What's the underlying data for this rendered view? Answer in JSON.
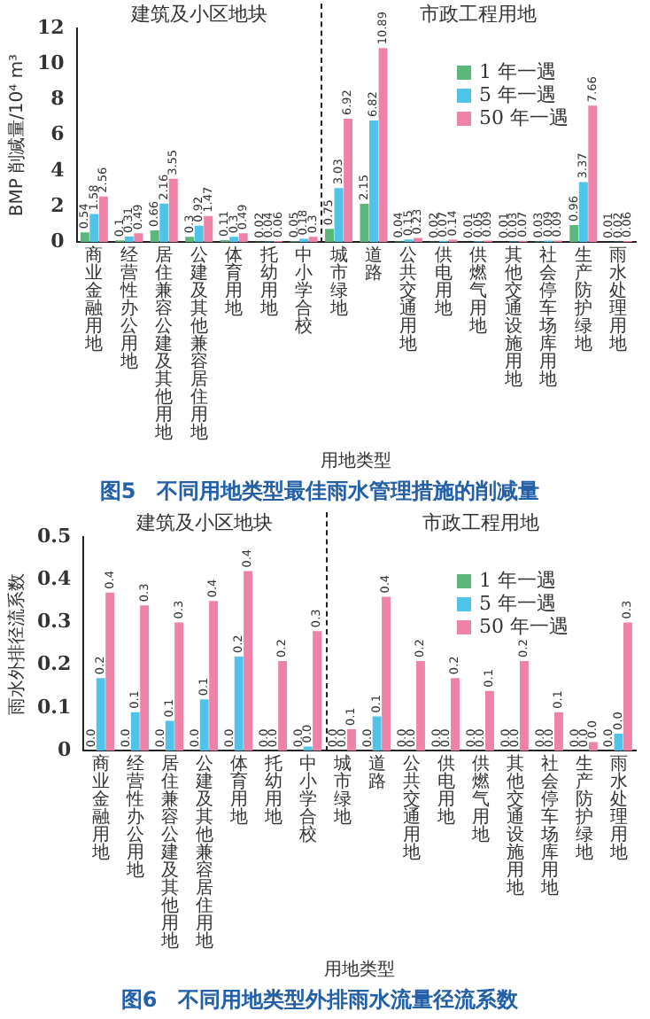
{
  "chart_data": [
    {
      "type": "bar",
      "title": "图5　不同用地类型最佳雨水管理措施的削减量",
      "xlabel": "用地类型",
      "ylabel": "BMP 削减量/10⁴ m³",
      "categories": [
        "商业金融用地",
        "经营性办公用地",
        "居住兼容公建及其他用地",
        "公建及其他兼容居住用地",
        "体育用地",
        "托幼用地",
        "中小学合校",
        "城市绿地",
        "道路",
        "公共交通用地",
        "供电用地",
        "供燃气用地",
        "其他交通设施用地",
        "社会停车场库用地",
        "生产防护绿地",
        "雨水处理用地"
      ],
      "series": [
        {
          "name": "1 年一遇",
          "color": "#5cb87a",
          "values": [
            0.54,
            0.1,
            0.66,
            0.3,
            0.11,
            0.02,
            0.05,
            0.75,
            2.15,
            0.04,
            0.02,
            0.01,
            0.01,
            0.03,
            0.96,
            0.01
          ]
        },
        {
          "name": "5 年一遇",
          "color": "#4fc3e8",
          "values": [
            1.58,
            0.31,
            2.16,
            0.92,
            0.3,
            0.04,
            0.18,
            3.03,
            6.82,
            0.15,
            0.07,
            0.05,
            0.03,
            0.09,
            3.37,
            0.02
          ]
        },
        {
          "name": "50 年一遇",
          "color": "#ee82a8",
          "values": [
            2.56,
            0.49,
            3.55,
            1.47,
            0.49,
            0.06,
            0.3,
            6.92,
            10.89,
            0.23,
            0.14,
            0.09,
            0.07,
            0.09,
            7.66,
            0.06
          ]
        }
      ],
      "ylim": [
        0,
        12
      ],
      "yticks": [
        0,
        2,
        4,
        6,
        8,
        10,
        12
      ],
      "grid": false,
      "legend": "top right",
      "data_labels": true,
      "annotations": [
        "建筑及小区地块",
        "市政工程用地"
      ]
    },
    {
      "type": "bar",
      "title": "图6　不同用地类型外排雨水流量径流系数",
      "xlabel": "用地类型",
      "ylabel": "雨水外排径流系数",
      "categories": [
        "商业金融用地",
        "经营性办公用地",
        "居住兼容公建及其他用地",
        "公建及其他兼容居住用地",
        "体育用地",
        "托幼用地",
        "中小学合校",
        "城市绿地",
        "道路",
        "公共交通用地",
        "供电用地",
        "供燃气用地",
        "其他交通设施用地",
        "社会停车场库用地",
        "生产防护绿地",
        "雨水处理用地"
      ],
      "series": [
        {
          "name": "1 年一遇",
          "color": "#5cb87a",
          "values": [
            0,
            0,
            0,
            0,
            0,
            0,
            0,
            0,
            0,
            0,
            0,
            0,
            0,
            0,
            0,
            0
          ],
          "value_labels": [
            "0.0",
            "0.0",
            "0.0",
            "0.0",
            "0.0",
            "0.0",
            "0.0",
            "0.0",
            "0.0",
            "0.0",
            "0.0",
            "0.0",
            "0.0",
            "0.0",
            "0.0",
            "0.0"
          ]
        },
        {
          "name": "5 年一遇",
          "color": "#4fc3e8",
          "values": [
            0.17,
            0.09,
            0.07,
            0.12,
            0.22,
            0,
            0.01,
            0,
            0.08,
            0,
            0,
            0,
            0,
            0,
            0,
            0.04
          ],
          "value_labels": [
            "0.2",
            "0.1",
            "0.1",
            "0.1",
            "0.2",
            "0.0",
            "0.0",
            "0.0",
            "0.1",
            "0.0",
            "0.0",
            "0.0",
            "0.0",
            "0.0",
            "0.0",
            "0.0"
          ]
        },
        {
          "name": "50 年一遇",
          "color": "#ee82a8",
          "values": [
            0.37,
            0.34,
            0.3,
            0.35,
            0.42,
            0.21,
            0.28,
            0.05,
            0.36,
            0.21,
            0.17,
            0.14,
            0.21,
            0.09,
            0.02,
            0.3
          ],
          "value_labels": [
            "0.4",
            "0.3",
            "0.3",
            "0.4",
            "0.4",
            "0.2",
            "0.3",
            "0.1",
            "0.4",
            "0.2",
            "0.2",
            "0.1",
            "0.2",
            "0.1",
            "0.0",
            "0.3"
          ]
        }
      ],
      "ylim": [
        0,
        0.5
      ],
      "yticks": [
        0,
        0.1,
        0.2,
        0.3,
        0.4,
        0.5
      ],
      "grid": false,
      "legend": "top right",
      "annotations": [
        "建筑及小区地块",
        "市政工程用地"
      ]
    }
  ]
}
